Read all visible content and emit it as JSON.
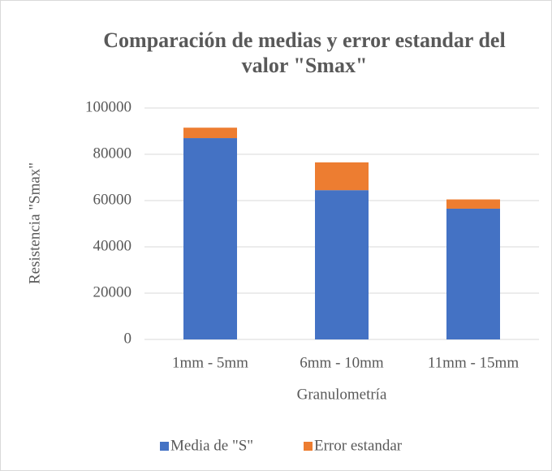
{
  "chart_data": {
    "type": "stacked_bar",
    "title": "Comparación de medias y error estandar del valor \"Smax\"",
    "xlabel": "Granulometría",
    "ylabel": "Resistencia  \"Smax\"",
    "categories": [
      "1mm - 5mm",
      "6mm - 10mm",
      "11mm - 15mm"
    ],
    "series": [
      {
        "name": "Media de \"S\"",
        "color": "#4472c4",
        "values": [
          87000,
          64500,
          56500
        ]
      },
      {
        "name": "Error estandar",
        "color": "#ed7d31",
        "values": [
          4500,
          12000,
          4000
        ]
      }
    ],
    "ylim": [
      0,
      100000
    ],
    "yticks": [
      0,
      20000,
      40000,
      60000,
      80000,
      100000
    ],
    "grid": true,
    "legend": "bottom"
  }
}
